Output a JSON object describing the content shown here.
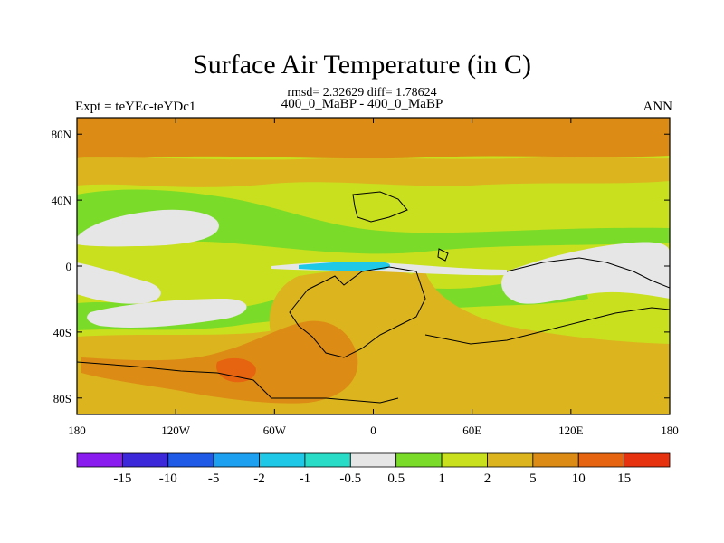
{
  "title": "Surface Air Temperature (in C)",
  "stats": "rmsd= 2.32629 diff= 1.78624",
  "subtitle": "400_0_MaBP - 400_0_MaBP",
  "left_label": "Expt = teYEc-teYDc1",
  "right_label": "ANN",
  "colors": {
    "lt_-15": "#8a1cf0",
    "-15_-10": "#3c28d8",
    "-10_-5": "#1e5ae6",
    "-5_-2": "#1ea0f0",
    "-2_-1": "#1ec8e6",
    "-1_-0.5": "#28dcc8",
    "-0.5_0.5": "#e6e6e6",
    "0.5_1": "#7adc28",
    "1_2": "#c8e01e",
    "2_5": "#dcb41e",
    "5_10": "#dc8c14",
    "10_15": "#e6640f",
    "gt_15": "#e6320f"
  },
  "chart_data": {
    "type": "heatmap",
    "xlim": [
      -180,
      180
    ],
    "ylim": [
      -90,
      90
    ],
    "x_ticks": [
      "180",
      "120W",
      "60W",
      "0",
      "60E",
      "120E",
      "180"
    ],
    "y_ticks": [
      "80N",
      "40N",
      "0",
      "40S",
      "80S"
    ],
    "colorbar_labels": [
      "-15",
      "-10",
      "-5",
      "-2",
      "-1",
      "-0.5",
      "0.5",
      "1",
      "2",
      "5",
      "10",
      "15"
    ]
  }
}
